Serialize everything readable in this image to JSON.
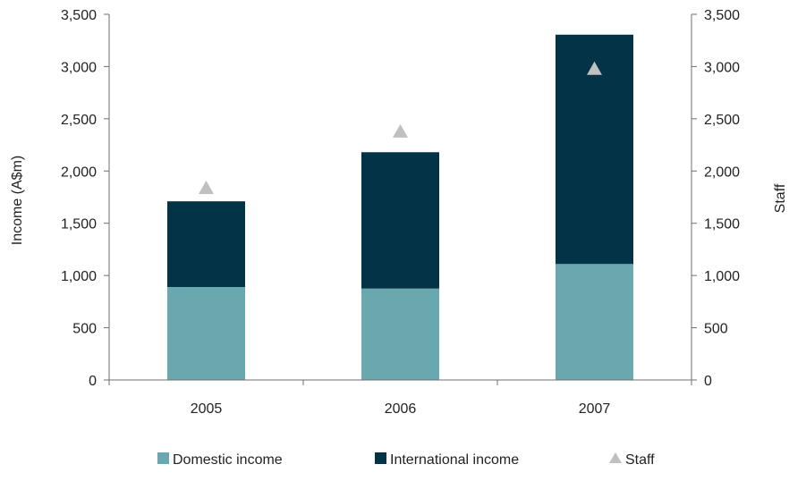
{
  "chart_data": {
    "type": "bar",
    "stacked": true,
    "categories": [
      "2005",
      "2006",
      "2007"
    ],
    "series": [
      {
        "name": "Domestic income",
        "type": "bar",
        "axis": "left",
        "color": "#6aa8b0",
        "values": [
          890,
          875,
          1110
        ]
      },
      {
        "name": "International income",
        "type": "bar",
        "axis": "left",
        "color": "#023347",
        "values": [
          820,
          1305,
          2195
        ]
      },
      {
        "name": "Staff",
        "type": "scatter",
        "marker": "triangle",
        "axis": "right",
        "color": "#c0c0c0",
        "values": [
          1840,
          2380,
          2980
        ]
      }
    ],
    "ylabel": "Income (A$m)",
    "y2label": "Staff",
    "ylim": [
      0,
      3500
    ],
    "y2lim": [
      0,
      3500
    ],
    "yticks": [
      "0",
      "500",
      "1,000",
      "1,500",
      "2,000",
      "2,500",
      "3,000",
      "3,500"
    ],
    "y2ticks": [
      "0",
      "500",
      "1,000",
      "1,500",
      "2,000",
      "2,500",
      "3,000",
      "3,500"
    ],
    "grid": false,
    "legend_position": "bottom"
  }
}
